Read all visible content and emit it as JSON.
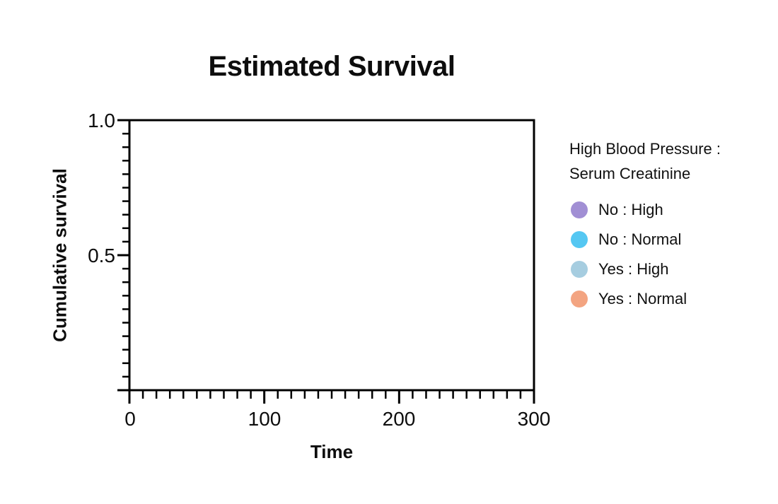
{
  "chart_data": {
    "type": "line",
    "title": "Estimated Survival",
    "xlabel": "Time",
    "ylabel": "Cumulative survival",
    "xlim": [
      0,
      300
    ],
    "ylim": [
      0,
      1.0
    ],
    "x_major_ticks": [
      0,
      100,
      200,
      300
    ],
    "x_tick_labels": [
      "0",
      "100",
      "200",
      "300"
    ],
    "x_minor_interval": 10,
    "y_major_ticks": [
      1.0,
      0.5,
      0.0
    ],
    "y_tick_labels": [
      "1.0",
      "0.5"
    ],
    "y_minor_interval": 0.05,
    "grid": false,
    "plot_area_empty": true,
    "axis_color": "#000000",
    "text_color": "#111111",
    "series": [
      {
        "name": "No : High",
        "color": "#a18fd4",
        "x": [],
        "y": []
      },
      {
        "name": "No : Normal",
        "color": "#55c7f2",
        "x": [],
        "y": []
      },
      {
        "name": "Yes : High",
        "color": "#a6cde0",
        "x": [],
        "y": []
      },
      {
        "name": "Yes : Normal",
        "color": "#f3a481",
        "x": [],
        "y": []
      }
    ],
    "legend": {
      "position": "right",
      "title_lines": [
        "High Blood Pressure :",
        "Serum Creatinine"
      ],
      "items": [
        {
          "label": "No : High",
          "color": "#a18fd4"
        },
        {
          "label": "No : Normal",
          "color": "#55c7f2"
        },
        {
          "label": "Yes : High",
          "color": "#a6cde0"
        },
        {
          "label": "Yes : Normal",
          "color": "#f3a481"
        }
      ]
    }
  }
}
